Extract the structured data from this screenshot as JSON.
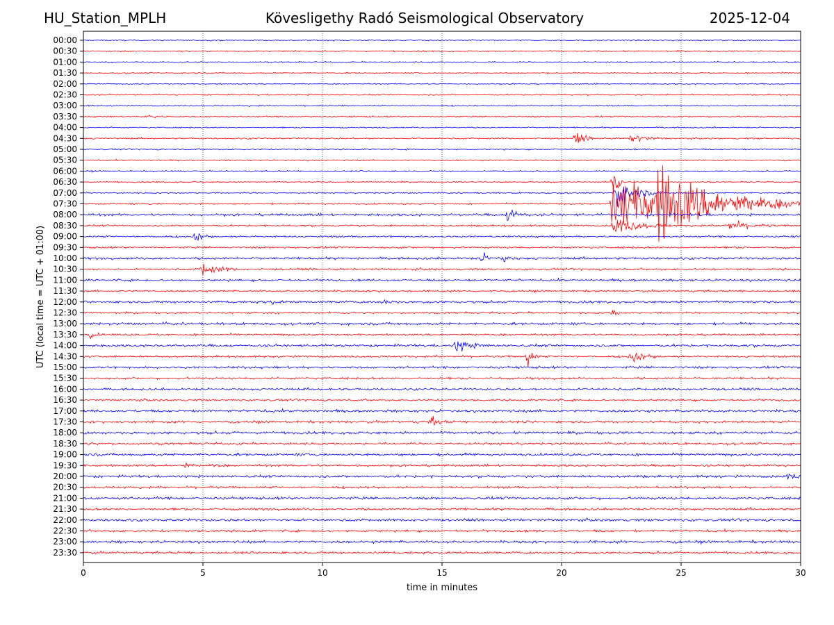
{
  "header": {
    "station": "HU_Station_MPLH",
    "observatory": "Kövesligethy Radó Seismological Observatory",
    "date": "2025-12-04"
  },
  "chart_data": {
    "type": "line",
    "subtype": "helicorder",
    "xlabel": "time in minutes",
    "ylabel": "UTC (local time = UTC + 01:00)",
    "xlim": [
      0,
      30
    ],
    "x_ticks": [
      "0",
      "5",
      "10",
      "15",
      "20",
      "25",
      "30"
    ],
    "x_tick_values": [
      0,
      5,
      10,
      15,
      20,
      25,
      30
    ],
    "grid": "vertical dotted at 5-minute intervals",
    "row_labels": [
      "00:00",
      "00:30",
      "01:00",
      "01:30",
      "02:00",
      "02:30",
      "03:00",
      "03:30",
      "04:00",
      "04:30",
      "05:00",
      "05:30",
      "06:00",
      "06:30",
      "07:00",
      "07:30",
      "08:00",
      "08:30",
      "09:00",
      "09:30",
      "10:00",
      "10:30",
      "11:00",
      "11:30",
      "12:00",
      "12:30",
      "13:00",
      "13:30",
      "14:00",
      "14:30",
      "15:00",
      "15:30",
      "16:00",
      "16:30",
      "17:00",
      "17:30",
      "18:00",
      "18:30",
      "19:00",
      "19:30",
      "20:00",
      "20:30",
      "21:00",
      "21:30",
      "22:00",
      "22:30",
      "23:00",
      "23:30"
    ],
    "colors": [
      "#0000ff",
      "#ff0000"
    ],
    "noise_amplitude_by_row": [
      0.12,
      0.13,
      0.12,
      0.12,
      0.12,
      0.12,
      0.12,
      0.13,
      0.12,
      0.15,
      0.13,
      0.13,
      0.13,
      0.13,
      0.14,
      0.15,
      0.25,
      0.18,
      0.18,
      0.18,
      0.22,
      0.2,
      0.22,
      0.18,
      0.22,
      0.18,
      0.25,
      0.2,
      0.25,
      0.2,
      0.22,
      0.2,
      0.22,
      0.2,
      0.25,
      0.22,
      0.25,
      0.22,
      0.25,
      0.22,
      0.25,
      0.22,
      0.25,
      0.22,
      0.25,
      0.22,
      0.25,
      0.22
    ],
    "events": [
      {
        "row": "03:30",
        "minute": 2.7,
        "amplitude": 0.6,
        "duration": 0.9
      },
      {
        "row": "04:30",
        "minute": 20.6,
        "amplitude": 1.0,
        "duration": 1.2
      },
      {
        "row": "04:30",
        "minute": 22.95,
        "amplitude": 0.9,
        "duration": 1.6
      },
      {
        "row": "06:30",
        "minute": 22.2,
        "amplitude": 6.0,
        "duration": 0.4
      },
      {
        "row": "07:00",
        "minute": 22.3,
        "amplitude": 3.0,
        "duration": 2.0
      },
      {
        "row": "07:30",
        "minute": 22.15,
        "amplitude": 6.0,
        "duration": 8.0
      },
      {
        "row": "07:30",
        "minute": 24.0,
        "amplitude": 6.0,
        "duration": 6.0
      },
      {
        "row": "08:00",
        "minute": 17.8,
        "amplitude": 2.0,
        "duration": 0.9
      },
      {
        "row": "08:30",
        "minute": 27.0,
        "amplitude": 1.2,
        "duration": 2.0
      },
      {
        "row": "08:30",
        "minute": 22.2,
        "amplitude": 2.0,
        "duration": 2.5
      },
      {
        "row": "09:00",
        "minute": 4.7,
        "amplitude": 1.2,
        "duration": 0.8
      },
      {
        "row": "10:00",
        "minute": 16.7,
        "amplitude": 1.2,
        "duration": 0.7
      },
      {
        "row": "10:00",
        "minute": 17.6,
        "amplitude": 0.7,
        "duration": 0.5
      },
      {
        "row": "10:30",
        "minute": 4.95,
        "amplitude": 1.6,
        "duration": 1.5
      },
      {
        "row": "12:00",
        "minute": 7.8,
        "amplitude": 0.5,
        "duration": 0.6
      },
      {
        "row": "12:00",
        "minute": 12.6,
        "amplitude": 0.6,
        "duration": 0.6
      },
      {
        "row": "12:30",
        "minute": 22.2,
        "amplitude": 1.5,
        "duration": 0.3
      },
      {
        "row": "13:30",
        "minute": 0.3,
        "amplitude": 0.6,
        "duration": 0.6
      },
      {
        "row": "14:00",
        "minute": 15.6,
        "amplitude": 1.5,
        "duration": 1.4
      },
      {
        "row": "14:30",
        "minute": 18.6,
        "amplitude": 2.5,
        "duration": 0.5
      },
      {
        "row": "14:30",
        "minute": 22.9,
        "amplitude": 1.5,
        "duration": 1.4
      },
      {
        "row": "17:30",
        "minute": 14.6,
        "amplitude": 1.0,
        "duration": 0.8
      },
      {
        "row": "19:30",
        "minute": 4.3,
        "amplitude": 0.6,
        "duration": 0.4
      },
      {
        "row": "19:30",
        "minute": 5.5,
        "amplitude": 0.5,
        "duration": 0.5
      },
      {
        "row": "20:00",
        "minute": 29.5,
        "amplitude": 0.6,
        "duration": 0.8
      }
    ]
  }
}
